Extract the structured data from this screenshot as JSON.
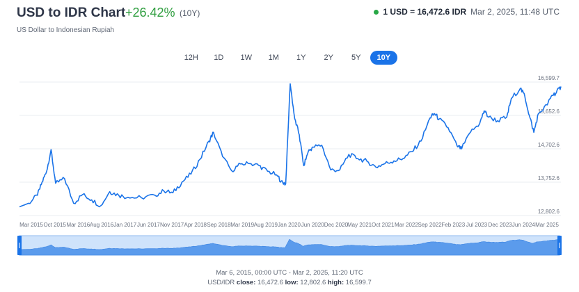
{
  "header": {
    "title": "USD to IDR Chart",
    "change": "+26.42%",
    "change_period": "(10Y)",
    "subtitle": "US Dollar to Indonesian Rupiah",
    "rate": "1 USD = 16,472.6 IDR",
    "rate_time": "Mar 2, 2025, 11:48 UTC",
    "status_color": "#27a745"
  },
  "ranges": {
    "items": [
      "12H",
      "1D",
      "1W",
      "1M",
      "1Y",
      "2Y",
      "5Y",
      "10Y"
    ],
    "selected": "10Y"
  },
  "footer": {
    "range_text": "Mar 6, 2015, 00:00 UTC - Mar 2, 2025, 11:20 UTC",
    "pair": "USD/IDR",
    "close_label": "close:",
    "close_value": "16,472.6",
    "low_label": "low:",
    "low_value": "12,802.6",
    "high_label": "high:",
    "high_value": "16,599.7"
  },
  "chart_data": {
    "type": "line",
    "ylim": [
      12802.6,
      16599.7
    ],
    "y_ticks": [
      "16,599.7",
      "15,652.6",
      "14,702.6",
      "13,752.6",
      "12,802.6"
    ],
    "x_ticks": [
      "Mar 2015",
      "Oct 2015",
      "Mar 2016",
      "Aug 2016",
      "Jan 2017",
      "Jun 2017",
      "Nov 2017",
      "Apr 2018",
      "Sep 2018",
      "Mar 2019",
      "Aug 2019",
      "Jan 2020",
      "Jun 2020",
      "Dec 2020",
      "May 2021",
      "Oct 2021",
      "Mar 2022",
      "Sep 2022",
      "Feb 2023",
      "Jul 2023",
      "Dec 2023",
      "Jun 2024",
      "Mar 2025"
    ],
    "color": "#1a73e8",
    "series": [
      {
        "x": [
          "2015-03",
          "2015-05",
          "2015-07",
          "2015-08",
          "2015-09",
          "2015-10",
          "2015-11",
          "2016-01",
          "2016-03",
          "2016-05",
          "2016-07",
          "2016-09",
          "2016-11",
          "2017-01",
          "2017-03",
          "2017-06",
          "2017-09",
          "2017-11",
          "2018-01",
          "2018-03",
          "2018-05",
          "2018-07",
          "2018-09",
          "2018-10",
          "2018-12",
          "2019-02",
          "2019-04",
          "2019-06",
          "2019-08",
          "2019-10",
          "2019-12",
          "2020-01",
          "2020-02",
          "2020-03",
          "2020-04",
          "2020-05",
          "2020-06",
          "2020-07",
          "2020-08",
          "2020-10",
          "2020-12",
          "2021-02",
          "2021-04",
          "2021-06",
          "2021-08",
          "2021-10",
          "2021-12",
          "2022-02",
          "2022-04",
          "2022-06",
          "2022-08",
          "2022-10",
          "2022-11",
          "2022-12",
          "2023-02",
          "2023-04",
          "2023-05",
          "2023-07",
          "2023-09",
          "2023-10",
          "2023-11",
          "2024-01",
          "2024-03",
          "2024-04",
          "2024-06",
          "2024-07",
          "2024-08",
          "2024-09",
          "2024-10",
          "2024-12",
          "2025-01",
          "2025-02",
          "2025-03"
        ],
        "y": [
          13050,
          13150,
          13380,
          13750,
          14050,
          14680,
          13720,
          13850,
          13150,
          13400,
          13250,
          13080,
          13480,
          13380,
          13320,
          13310,
          13380,
          13500,
          13450,
          13750,
          13980,
          14400,
          14920,
          15170,
          14480,
          14080,
          14270,
          14280,
          14230,
          14060,
          13960,
          13780,
          13700,
          16550,
          15560,
          15100,
          14220,
          14620,
          14750,
          14800,
          14100,
          14100,
          14540,
          14420,
          14350,
          14180,
          14280,
          14360,
          14420,
          14620,
          14920,
          15580,
          15700,
          15550,
          15300,
          14780,
          14700,
          15180,
          15420,
          15780,
          15600,
          15500,
          15600,
          16130,
          16420,
          16200,
          15650,
          15170,
          15700,
          15950,
          16220,
          16300,
          16472.6
        ]
      }
    ]
  }
}
